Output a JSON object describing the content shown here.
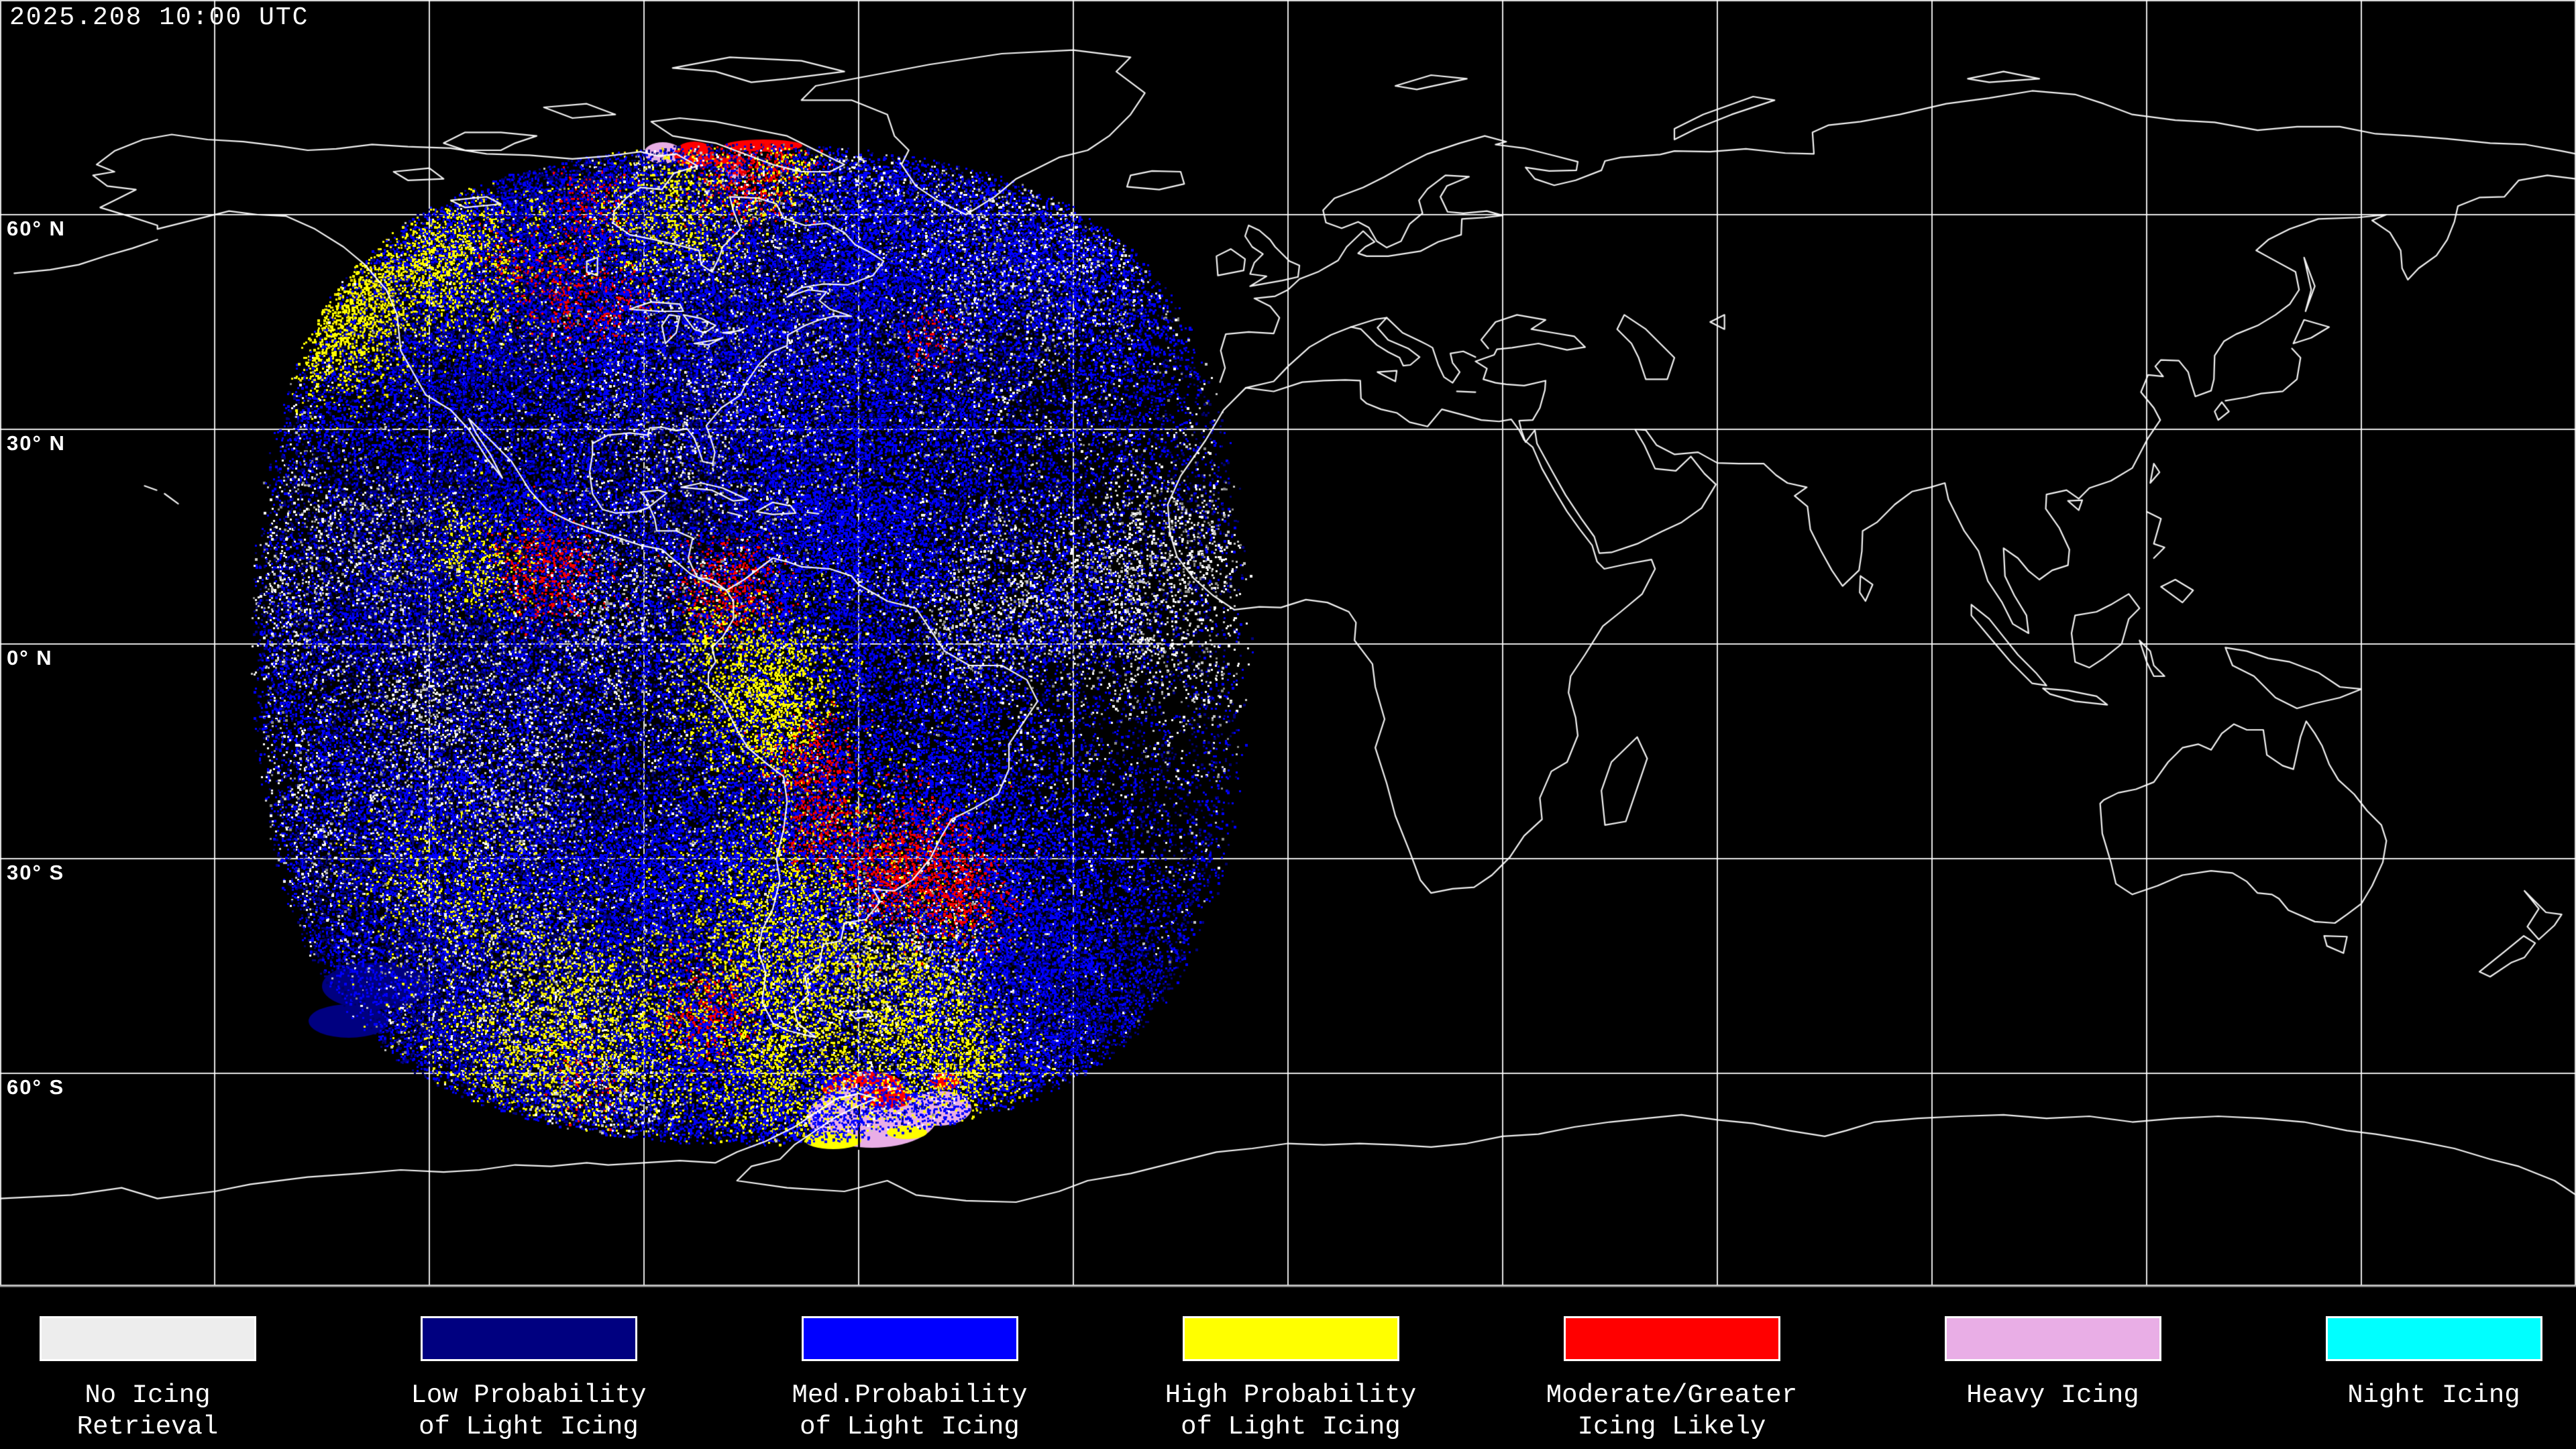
{
  "timestamp": "2025.208 10:00 UTC",
  "map": {
    "background": "#000000",
    "coastline_color": "#ffffff",
    "grid_color": "#ffffff",
    "grid_spacing_deg": 30,
    "latitude_labels": [
      {
        "text": "60° N",
        "lat": 60
      },
      {
        "text": "30° N",
        "lat": 30
      },
      {
        "text": "0° N",
        "lat": 0
      },
      {
        "text": "30° S",
        "lat": -30
      },
      {
        "text": "60° S",
        "lat": -60
      }
    ],
    "satellite_footprint": {
      "center_lon_deg": -75,
      "max_view_angle_deg": 70
    }
  },
  "legend": {
    "items": [
      {
        "label_lines": [
          "No Icing",
          "Retrieval"
        ],
        "color": "#ededed"
      },
      {
        "label_lines": [
          "Low Probability",
          "of Light Icing"
        ],
        "color": "#000080"
      },
      {
        "label_lines": [
          "Med.Probability",
          "of Light Icing"
        ],
        "color": "#0000ff"
      },
      {
        "label_lines": [
          "High Probability",
          "of Light Icing"
        ],
        "color": "#ffff00"
      },
      {
        "label_lines": [
          "Moderate/Greater",
          "Icing Likely"
        ],
        "color": "#ff0000"
      },
      {
        "label_lines": [
          "Heavy Icing"
        ],
        "color": "#e9aee6"
      },
      {
        "label_lines": [
          "Night Icing"
        ],
        "color": "#00ffff"
      }
    ]
  }
}
